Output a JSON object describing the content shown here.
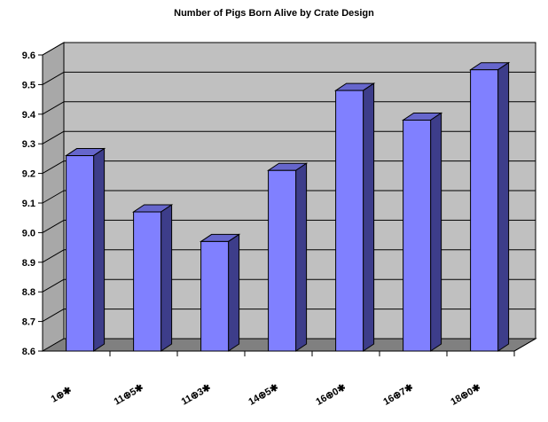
{
  "chart_data": {
    "type": "bar",
    "title": "Number of Pigs Born Alive by Crate Design",
    "xlabel": "",
    "ylabel": "",
    "categories": [
      "1⊕✱",
      "11⊕5✱",
      "11⊕3✱",
      "14⊕5✱",
      "16⊕0✱",
      "16⊕7✱",
      "18⊕0✱"
    ],
    "values": [
      9.26,
      9.07,
      8.97,
      9.21,
      9.48,
      9.38,
      9.55
    ],
    "ytick_labels": [
      "8.6",
      "8.7",
      "8.8",
      "8.9",
      "9.0",
      "9.1",
      "9.2",
      "9.3",
      "9.4",
      "9.5",
      "9.6"
    ],
    "ylim": [
      8.6,
      9.6
    ],
    "grid": true,
    "style": "3d-column",
    "colors": {
      "bar_front": "#8080ff",
      "bar_top": "#6666cc",
      "bar_side": "#3d3d8a",
      "wall": "#c0c0c0",
      "floor": "#808080",
      "grid": "#000000"
    }
  }
}
